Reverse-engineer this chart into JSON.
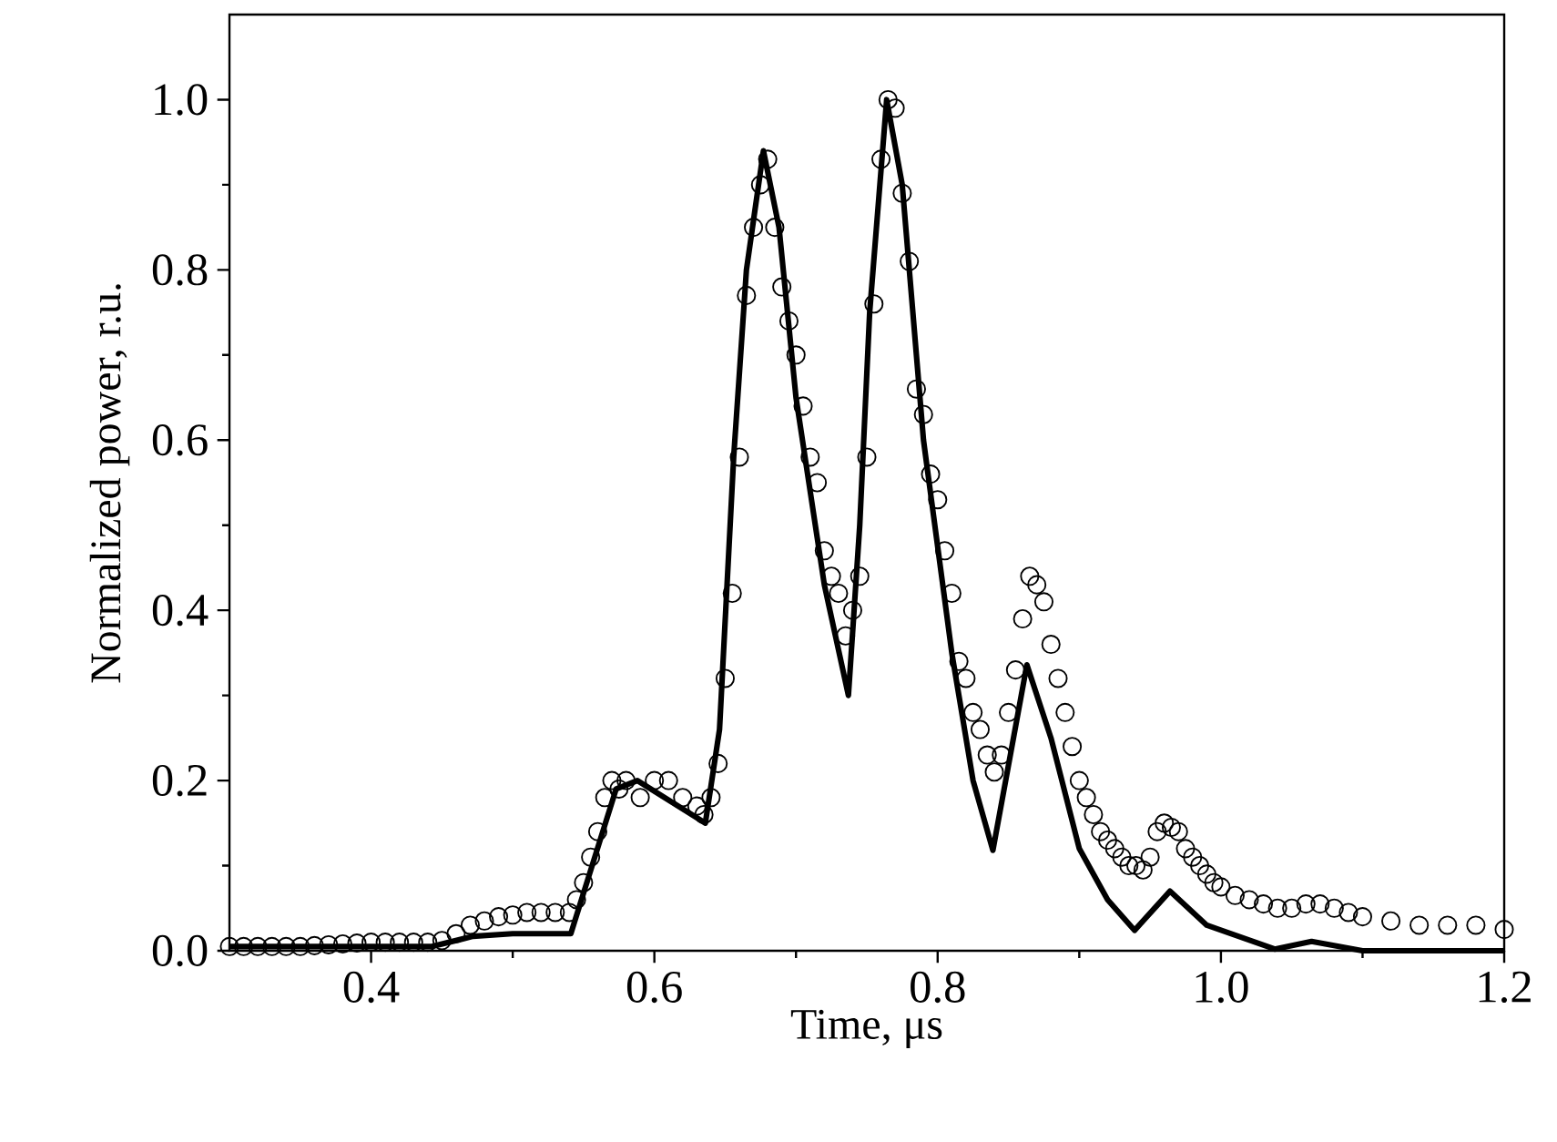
{
  "chart_data": {
    "type": "line",
    "xlabel": "Time, μs",
    "ylabel": "Normalized power, r.u.",
    "xlim": [
      0.3,
      1.2
    ],
    "ylim": [
      0,
      1.1
    ],
    "xticks": [
      0.4,
      0.6,
      0.8,
      {
        "value": 1.0,
        "label": "1.0"
      },
      1.2
    ],
    "yticks": [
      {
        "value": 0,
        "label": "0.0"
      },
      0.2,
      0.4,
      0.6,
      0.8,
      {
        "value": 1.0,
        "label": "1.0"
      }
    ],
    "series": [
      {
        "color": "#000000",
        "marker": "none",
        "line_style": "solid",
        "x": [
          0.3,
          0.443,
          0.472,
          0.5,
          0.541,
          0.573,
          0.588,
          0.636,
          0.646,
          0.656,
          0.665,
          0.677,
          0.688,
          0.7,
          0.72,
          0.737,
          0.745,
          0.752,
          0.764,
          0.775,
          0.79,
          0.81,
          0.825,
          0.839,
          0.863,
          0.88,
          0.9,
          0.92,
          0.939,
          0.964,
          0.99,
          1.038,
          1.064,
          1.1,
          1.2
        ],
        "values": [
          0.005,
          0.005,
          0.017,
          0.02,
          0.02,
          0.19,
          0.2,
          0.15,
          0.26,
          0.58,
          0.8,
          0.94,
          0.85,
          0.65,
          0.43,
          0.3,
          0.5,
          0.75,
          1.0,
          0.9,
          0.6,
          0.35,
          0.2,
          0.118,
          0.336,
          0.25,
          0.12,
          0.06,
          0.024,
          0.07,
          0.03,
          0.002,
          0.011,
          0.0,
          0.0
        ]
      },
      {
        "type": "scatter",
        "color": "#000000",
        "marker": "circle",
        "x": [
          0.3,
          0.31,
          0.32,
          0.33,
          0.34,
          0.35,
          0.36,
          0.37,
          0.38,
          0.39,
          0.4,
          0.41,
          0.42,
          0.43,
          0.44,
          0.45,
          0.46,
          0.47,
          0.48,
          0.49,
          0.5,
          0.51,
          0.52,
          0.53,
          0.54,
          0.545,
          0.55,
          0.555,
          0.56,
          0.565,
          0.57,
          0.575,
          0.58,
          0.59,
          0.6,
          0.61,
          0.62,
          0.63,
          0.635,
          0.64,
          0.645,
          0.65,
          0.655,
          0.66,
          0.665,
          0.67,
          0.675,
          0.68,
          0.685,
          0.69,
          0.695,
          0.7,
          0.705,
          0.71,
          0.715,
          0.72,
          0.725,
          0.73,
          0.735,
          0.74,
          0.745,
          0.75,
          0.755,
          0.76,
          0.765,
          0.77,
          0.775,
          0.78,
          0.785,
          0.79,
          0.795,
          0.8,
          0.805,
          0.81,
          0.815,
          0.82,
          0.825,
          0.83,
          0.835,
          0.84,
          0.845,
          0.85,
          0.855,
          0.86,
          0.865,
          0.87,
          0.875,
          0.88,
          0.885,
          0.89,
          0.895,
          0.9,
          0.905,
          0.91,
          0.915,
          0.92,
          0.925,
          0.93,
          0.935,
          0.94,
          0.945,
          0.95,
          0.955,
          0.96,
          0.965,
          0.97,
          0.975,
          0.98,
          0.985,
          0.99,
          0.995,
          1.0,
          1.01,
          1.02,
          1.03,
          1.04,
          1.05,
          1.06,
          1.07,
          1.08,
          1.09,
          1.1,
          1.12,
          1.14,
          1.16,
          1.18,
          1.2
        ],
        "values": [
          0.005,
          0.005,
          0.005,
          0.005,
          0.005,
          0.005,
          0.006,
          0.007,
          0.008,
          0.009,
          0.01,
          0.01,
          0.01,
          0.01,
          0.01,
          0.012,
          0.02,
          0.03,
          0.035,
          0.04,
          0.042,
          0.045,
          0.045,
          0.045,
          0.045,
          0.06,
          0.08,
          0.11,
          0.14,
          0.18,
          0.2,
          0.19,
          0.2,
          0.18,
          0.2,
          0.2,
          0.18,
          0.17,
          0.16,
          0.18,
          0.22,
          0.32,
          0.42,
          0.58,
          0.77,
          0.85,
          0.9,
          0.93,
          0.85,
          0.78,
          0.74,
          0.7,
          0.64,
          0.58,
          0.55,
          0.47,
          0.44,
          0.42,
          0.37,
          0.4,
          0.44,
          0.58,
          0.76,
          0.93,
          1.0,
          0.99,
          0.89,
          0.81,
          0.66,
          0.63,
          0.56,
          0.53,
          0.47,
          0.42,
          0.34,
          0.32,
          0.28,
          0.26,
          0.23,
          0.21,
          0.23,
          0.28,
          0.33,
          0.39,
          0.44,
          0.43,
          0.41,
          0.36,
          0.32,
          0.28,
          0.24,
          0.2,
          0.18,
          0.16,
          0.14,
          0.13,
          0.12,
          0.11,
          0.1,
          0.1,
          0.095,
          0.11,
          0.14,
          0.15,
          0.145,
          0.14,
          0.12,
          0.11,
          0.1,
          0.09,
          0.08,
          0.075,
          0.065,
          0.06,
          0.055,
          0.05,
          0.05,
          0.055,
          0.055,
          0.05,
          0.045,
          0.04,
          0.035,
          0.03,
          0.03,
          0.03,
          0.025
        ]
      }
    ]
  }
}
